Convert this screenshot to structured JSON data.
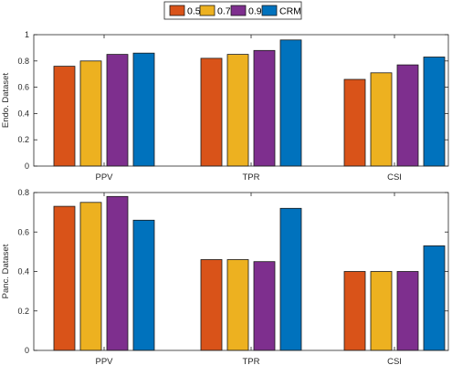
{
  "chart_data": [
    {
      "type": "bar",
      "ylabel": "Endo. Dataset",
      "categories": [
        "PPV",
        "TPR",
        "CSI"
      ],
      "ylim": [
        0,
        1
      ],
      "yticks": [
        "0",
        "0.2",
        "0.4",
        "0.6",
        "0.8",
        "1"
      ],
      "series": [
        {
          "name": "0.5",
          "color": "#d95319",
          "values": [
            0.76,
            0.82,
            0.66
          ]
        },
        {
          "name": "0.7",
          "color": "#edb120",
          "values": [
            0.8,
            0.85,
            0.71
          ]
        },
        {
          "name": "0.9",
          "color": "#7e2f8e",
          "values": [
            0.85,
            0.88,
            0.77
          ]
        },
        {
          "name": "CRM",
          "color": "#0072bd",
          "values": [
            0.86,
            0.96,
            0.83
          ]
        }
      ]
    },
    {
      "type": "bar",
      "ylabel": "Panc. Dataset",
      "categories": [
        "PPV",
        "TPR",
        "CSI"
      ],
      "ylim": [
        0,
        0.8
      ],
      "yticks": [
        "0",
        "0.2",
        "0.4",
        "0.6",
        "0.8"
      ],
      "series": [
        {
          "name": "0.5",
          "color": "#d95319",
          "values": [
            0.73,
            0.46,
            0.4
          ]
        },
        {
          "name": "0.7",
          "color": "#edb120",
          "values": [
            0.75,
            0.46,
            0.4
          ]
        },
        {
          "name": "0.9",
          "color": "#7e2f8e",
          "values": [
            0.78,
            0.45,
            0.4
          ]
        },
        {
          "name": "CRM",
          "color": "#0072bd",
          "values": [
            0.66,
            0.72,
            0.53
          ]
        }
      ]
    }
  ],
  "legend": {
    "entries": [
      "0.5",
      "0.7",
      "0.9",
      "CRM"
    ],
    "colors": [
      "#d95319",
      "#edb120",
      "#7e2f8e",
      "#0072bd"
    ],
    "placement": "top-center"
  }
}
